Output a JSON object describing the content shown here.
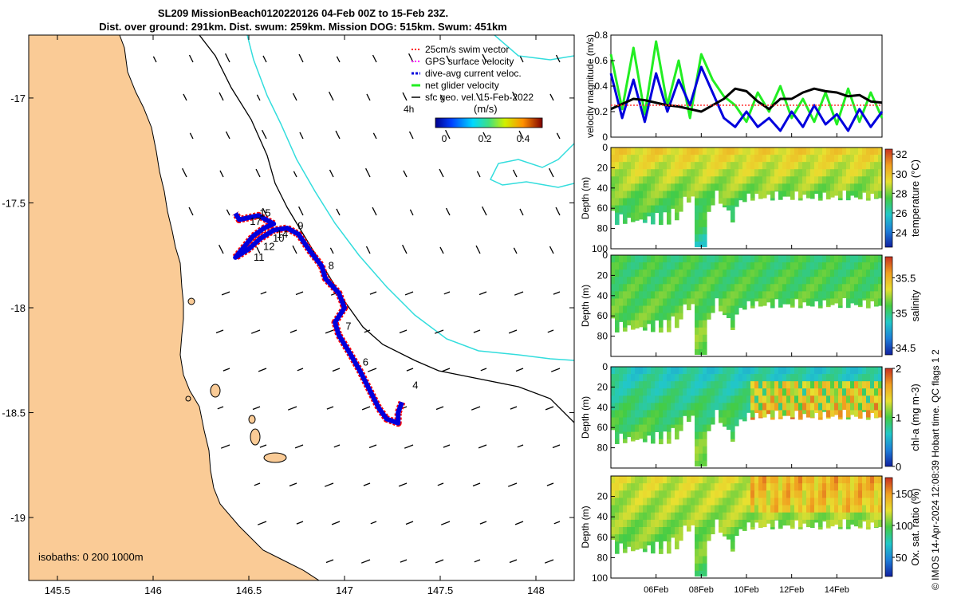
{
  "title": {
    "line1": "SL209 MissionBeach0120220126 04-Feb 00Z to 15-Feb 23Z.",
    "line2": "Dist. over ground: 291km. Dist. swum: 259km. Mission DOG: 515km. Swum: 451km"
  },
  "colors": {
    "land": "#FACB96",
    "isobath_dark": "#000000",
    "isobath_light": "#33DDDD",
    "track_red": "#FF0000",
    "track_blue": "#0000DD",
    "net_green": "#22EE22",
    "geo_black": "#000000"
  },
  "map": {
    "x_ticks": [
      "145.5",
      "146",
      "146.5",
      "147",
      "147.5",
      "148"
    ],
    "y_ticks": [
      "-17",
      "-17.5",
      "-18",
      "-18.5",
      "-19"
    ],
    "xlim": [
      145.35,
      148.2
    ],
    "ylim": [
      -19.3,
      -16.7
    ],
    "isobaths_label": "isobaths: 0   200   1000m",
    "legend": {
      "items": [
        {
          "label": "25cm/s swim vector",
          "icon": "red-dash-icon"
        },
        {
          "label": "GPS surface velocity",
          "icon": "magenta-dash-icon"
        },
        {
          "label": "dive-avg current veloc.",
          "icon": "blue-dash-icon"
        },
        {
          "label": "net glider velocity",
          "icon": "green-dash-icon"
        },
        {
          "label": "sfc geo. vel. 15-Feb-2022",
          "icon": "black-arrow-icon"
        }
      ],
      "vel_scale_label": "4h",
      "colorbar_title": "(m/s)",
      "colorbar_ticks": [
        "0",
        "0.2",
        "0.4"
      ]
    },
    "waypoints": [
      {
        "label": "4",
        "lon": 147.33,
        "lat": -18.37
      },
      {
        "label": "6",
        "lon": 147.07,
        "lat": -18.26
      },
      {
        "label": "7",
        "lon": 146.98,
        "lat": -18.09
      },
      {
        "label": "8",
        "lon": 146.89,
        "lat": -17.8
      },
      {
        "label": "9",
        "lon": 146.73,
        "lat": -17.61
      },
      {
        "label": "10",
        "lon": 146.6,
        "lat": -17.67
      },
      {
        "label": "11",
        "lon": 146.5,
        "lat": -17.76
      },
      {
        "label": "12",
        "lon": 146.55,
        "lat": -17.71
      },
      {
        "label": "14",
        "lon": 146.62,
        "lat": -17.65
      },
      {
        "label": "15",
        "lon": 146.53,
        "lat": -17.55
      },
      {
        "label": "17",
        "lon": 146.48,
        "lat": -17.59
      }
    ],
    "track": [
      [
        147.3,
        -18.45
      ],
      [
        147.28,
        -18.5
      ],
      [
        147.28,
        -18.55
      ],
      [
        147.22,
        -18.53
      ],
      [
        147.18,
        -18.48
      ],
      [
        147.08,
        -18.3
      ],
      [
        147.03,
        -18.22
      ],
      [
        146.97,
        -18.13
      ],
      [
        146.95,
        -18.07
      ],
      [
        147.0,
        -18.0
      ],
      [
        146.97,
        -17.93
      ],
      [
        146.9,
        -17.86
      ],
      [
        146.88,
        -17.8
      ],
      [
        146.82,
        -17.73
      ],
      [
        146.76,
        -17.65
      ],
      [
        146.7,
        -17.62
      ],
      [
        146.63,
        -17.63
      ],
      [
        146.56,
        -17.67
      ],
      [
        146.5,
        -17.72
      ],
      [
        146.43,
        -17.76
      ],
      [
        146.52,
        -17.66
      ],
      [
        146.58,
        -17.62
      ],
      [
        146.63,
        -17.6
      ],
      [
        146.55,
        -17.56
      ],
      [
        146.45,
        -17.58
      ],
      [
        146.43,
        -17.55
      ]
    ]
  },
  "chart_data": [
    {
      "type": "line",
      "title": "",
      "ylabel": "velocity magnitude (m/s)",
      "x_ticks": [
        "06Feb",
        "08Feb",
        "10Feb",
        "12Feb",
        "14Feb"
      ],
      "x_tick_days": [
        6,
        8,
        10,
        12,
        14
      ],
      "xlim_days": [
        4,
        16
      ],
      "ylim": [
        0,
        0.8
      ],
      "y_ticks": [
        0,
        0.2,
        0.4,
        0.6,
        0.8
      ],
      "series": [
        {
          "name": "net glider velocity",
          "color": "#22EE22",
          "days": [
            4,
            4.5,
            5,
            5.5,
            6,
            6.5,
            7,
            7.5,
            8,
            8.5,
            9,
            9.5,
            10,
            10.5,
            11,
            11.5,
            12,
            12.5,
            13,
            13.5,
            14,
            14.5,
            15,
            15.5,
            16
          ],
          "values": [
            0.65,
            0.22,
            0.7,
            0.18,
            0.75,
            0.25,
            0.6,
            0.15,
            0.65,
            0.45,
            0.32,
            0.25,
            0.12,
            0.35,
            0.2,
            0.4,
            0.15,
            0.3,
            0.12,
            0.35,
            0.1,
            0.38,
            0.12,
            0.35,
            0.15
          ]
        },
        {
          "name": "dive-avg current",
          "color": "#0000DD",
          "days": [
            4,
            4.5,
            5,
            5.5,
            6,
            6.5,
            7,
            7.5,
            8,
            8.5,
            9,
            9.5,
            10,
            10.5,
            11,
            11.5,
            12,
            12.5,
            13,
            13.5,
            14,
            14.5,
            15,
            15.5,
            16
          ],
          "values": [
            0.5,
            0.15,
            0.45,
            0.12,
            0.5,
            0.2,
            0.45,
            0.25,
            0.55,
            0.35,
            0.15,
            0.08,
            0.2,
            0.08,
            0.15,
            0.05,
            0.2,
            0.08,
            0.25,
            0.1,
            0.18,
            0.05,
            0.22,
            0.08,
            0.2
          ]
        },
        {
          "name": "sfc geo. vel.",
          "color": "#000000",
          "days": [
            4,
            4.5,
            5,
            5.5,
            6,
            6.5,
            7,
            7.5,
            8,
            8.5,
            9,
            9.5,
            10,
            10.5,
            11,
            11.5,
            12,
            12.5,
            13,
            13.5,
            14,
            14.5,
            15,
            15.5,
            16
          ],
          "values": [
            0.22,
            0.26,
            0.3,
            0.29,
            0.27,
            0.25,
            0.24,
            0.22,
            0.2,
            0.25,
            0.3,
            0.38,
            0.36,
            0.28,
            0.22,
            0.3,
            0.3,
            0.35,
            0.38,
            0.36,
            0.35,
            0.32,
            0.33,
            0.28,
            0.27
          ]
        },
        {
          "name": "25cm/s swim vector",
          "color": "#FF3333",
          "days": [
            4,
            16
          ],
          "values": [
            0.25,
            0.25
          ]
        }
      ]
    },
    {
      "type": "heatmap",
      "ylabel": "Depth (m)",
      "cbar_label": "temperature (°C)",
      "cbar_ticks": [
        24,
        26,
        28,
        30,
        32
      ],
      "clim": [
        22.5,
        32.5
      ],
      "ylim": [
        0,
        100
      ],
      "y_ticks": [
        0,
        20,
        40,
        60,
        80,
        100
      ],
      "surface_value": 29.5,
      "bottom_value": 26,
      "palette": [
        "#1020A0",
        "#1E7FD8",
        "#22C8C8",
        "#44CC44",
        "#E8E030",
        "#F0A020",
        "#C83020"
      ]
    },
    {
      "type": "heatmap",
      "ylabel": "Depth (m)",
      "cbar_label": "salinity",
      "cbar_ticks": [
        34.5,
        35,
        35.5
      ],
      "clim": [
        34.4,
        35.8
      ],
      "ylim": [
        0,
        100
      ],
      "y_ticks": [
        0,
        20,
        40,
        60,
        80
      ],
      "surface_value": 35.05,
      "bottom_value": 35.2,
      "palette": [
        "#1020A0",
        "#1E7FD8",
        "#22C8C8",
        "#44CC44",
        "#E8E030",
        "#F0A020",
        "#C83020"
      ]
    },
    {
      "type": "heatmap",
      "ylabel": "Depth (m)",
      "cbar_label": "chl-a (mg m-3)",
      "cbar_ticks": [
        0,
        1,
        2
      ],
      "clim": [
        0,
        2
      ],
      "ylim": [
        0,
        100
      ],
      "y_ticks": [
        0,
        20,
        40,
        60,
        80
      ],
      "surface_value": 0.7,
      "bottom_value": 1.2,
      "palette": [
        "#1020A0",
        "#1E7FD8",
        "#22C8C8",
        "#44CC44",
        "#E8E030",
        "#F0A020",
        "#C83020"
      ]
    },
    {
      "type": "heatmap",
      "ylabel": "Depth (m)",
      "cbar_label": "Ox. sat. ratio (%)",
      "cbar_ticks": [
        50,
        100,
        150
      ],
      "clim": [
        20,
        175
      ],
      "ylim": [
        0,
        100
      ],
      "y_ticks": [
        20,
        40,
        60,
        80,
        100
      ],
      "surface_value": 120,
      "bottom_value": 95,
      "palette": [
        "#1020A0",
        "#1E7FD8",
        "#22C8C8",
        "#44CC44",
        "#E8E030",
        "#F0A020",
        "#C83020"
      ]
    }
  ],
  "footer": "© IMOS 14-Apr-2024 12:08:39 Hobart time. QC flags 1  2"
}
